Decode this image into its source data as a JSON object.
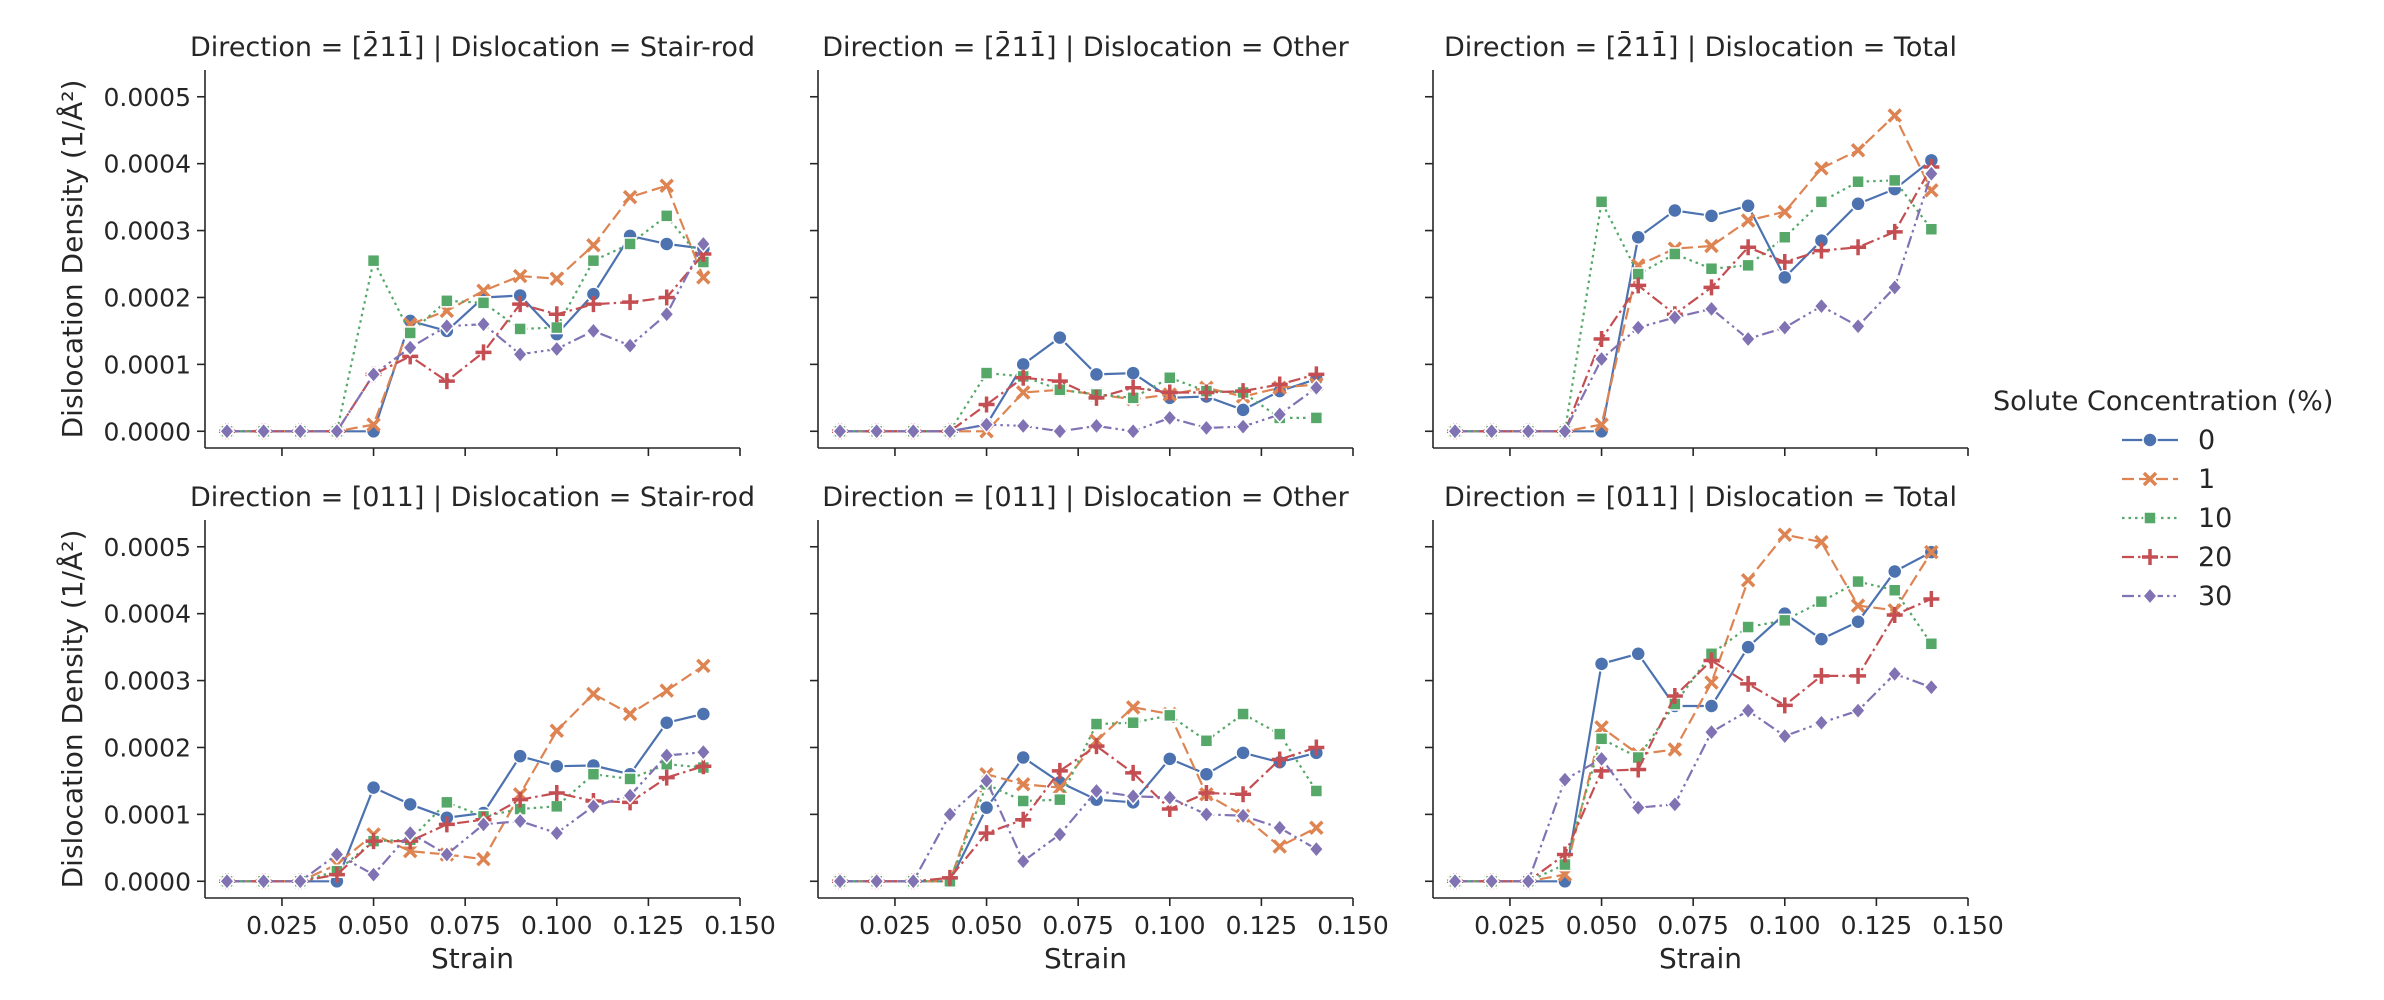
{
  "figure": {
    "legend": {
      "title": "Solute Concentration (%)",
      "placement": "right",
      "entries": [
        {
          "label": "0",
          "color": "#4c72b0",
          "marker": "circle",
          "dash": "solid"
        },
        {
          "label": "1",
          "color": "#dd8452",
          "marker": "x",
          "dash": "dashed"
        },
        {
          "label": "10",
          "color": "#55a868",
          "marker": "square",
          "dash": "dotted"
        },
        {
          "label": "20",
          "color": "#c44e52",
          "marker": "plus",
          "dash": "dashdot"
        },
        {
          "label": "30",
          "color": "#8172b3",
          "marker": "diamond",
          "dash": "dashdotdot"
        }
      ]
    },
    "shared_axes": {
      "xlabel": "Strain",
      "ylabel": "Dislocation Density (1/Å²)",
      "xlim": [
        0.004,
        0.15
      ],
      "ylim": [
        -2.5e-05,
        0.00054
      ],
      "xticks": [
        0.025,
        0.05,
        0.075,
        0.1,
        0.125,
        0.15
      ],
      "xtick_labels": [
        "0.025",
        "0.050",
        "0.075",
        "0.100",
        "0.125",
        "0.150"
      ],
      "yticks": [
        0,
        0.0001,
        0.0002,
        0.0003,
        0.0004,
        0.0005
      ],
      "ytick_labels": [
        "0.0000",
        "0.0001",
        "0.0002",
        "0.0003",
        "0.0004",
        "0.0005"
      ],
      "grid": false
    }
  },
  "chart_data": [
    {
      "type": "line",
      "title": "Direction = [2̄11̄] | Dislocation = Stair-rod",
      "x": [
        0.01,
        0.02,
        0.03,
        0.04,
        0.05,
        0.06,
        0.07,
        0.08,
        0.09,
        0.1,
        0.11,
        0.12,
        0.13,
        0.14
      ],
      "series": [
        {
          "name": "0",
          "values": [
            0,
            0,
            0,
            0,
            0,
            0.000165,
            0.00015,
            0.0002,
            0.000203,
            0.000145,
            0.000205,
            0.000292,
            0.00028,
            0.000273
          ]
        },
        {
          "name": "1",
          "values": [
            0,
            0,
            0,
            0,
            1e-05,
            0.00016,
            0.00018,
            0.00021,
            0.000232,
            0.000228,
            0.000278,
            0.00035,
            0.000367,
            0.00023
          ]
        },
        {
          "name": "10",
          "values": [
            0,
            0,
            0,
            0,
            0.000255,
            0.000147,
            0.000195,
            0.000192,
            0.000153,
            0.000155,
            0.000255,
            0.00028,
            0.000322,
            0.000253
          ]
        },
        {
          "name": "20",
          "values": [
            0,
            0,
            0,
            0,
            8.5e-05,
            0.000112,
            7.5e-05,
            0.000118,
            0.00019,
            0.000175,
            0.00019,
            0.000193,
            0.0002,
            0.000265
          ]
        },
        {
          "name": "30",
          "values": [
            0,
            0,
            0,
            0,
            8.5e-05,
            0.000125,
            0.000157,
            0.00016,
            0.000115,
            0.000123,
            0.00015,
            0.000128,
            0.000175,
            0.00028
          ]
        }
      ]
    },
    {
      "type": "line",
      "title": "Direction = [2̄11̄] | Dislocation = Other",
      "x": [
        0.01,
        0.02,
        0.03,
        0.04,
        0.05,
        0.06,
        0.07,
        0.08,
        0.09,
        0.1,
        0.11,
        0.12,
        0.13,
        0.14
      ],
      "series": [
        {
          "name": "0",
          "values": [
            0,
            0,
            0,
            0,
            1e-05,
            0.0001,
            0.00014,
            8.5e-05,
            8.7e-05,
            5e-05,
            5.2e-05,
            3.2e-05,
            6e-05,
            7.8e-05
          ]
        },
        {
          "name": "1",
          "values": [
            0,
            0,
            0,
            0,
            0,
            5.8e-05,
            6.2e-05,
            5.5e-05,
            4.8e-05,
            5.5e-05,
            6.5e-05,
            5.2e-05,
            6.5e-05,
            7e-05
          ]
        },
        {
          "name": "10",
          "values": [
            0,
            0,
            0,
            0,
            8.7e-05,
            8.2e-05,
            6.2e-05,
            5.5e-05,
            5e-05,
            8e-05,
            6e-05,
            5.8e-05,
            2e-05,
            2e-05
          ]
        },
        {
          "name": "20",
          "values": [
            0,
            0,
            0,
            0,
            4e-05,
            8e-05,
            7.5e-05,
            5e-05,
            6.5e-05,
            5.8e-05,
            5.8e-05,
            6e-05,
            7e-05,
            8.5e-05
          ]
        },
        {
          "name": "30",
          "values": [
            0,
            0,
            0,
            0,
            1e-05,
            8e-06,
            0,
            8e-06,
            0,
            2e-05,
            5e-06,
            7e-06,
            2.5e-05,
            6.5e-05
          ]
        }
      ]
    },
    {
      "type": "line",
      "title": "Direction = [2̄11̄] | Dislocation = Total",
      "x": [
        0.01,
        0.02,
        0.03,
        0.04,
        0.05,
        0.06,
        0.07,
        0.08,
        0.09,
        0.1,
        0.11,
        0.12,
        0.13,
        0.14
      ],
      "series": [
        {
          "name": "0",
          "values": [
            0,
            0,
            0,
            0,
            0,
            0.00029,
            0.00033,
            0.000322,
            0.000337,
            0.00023,
            0.000285,
            0.00034,
            0.000362,
            0.000405
          ]
        },
        {
          "name": "1",
          "values": [
            0,
            0,
            0,
            0,
            1e-05,
            0.000248,
            0.000273,
            0.000277,
            0.000315,
            0.000328,
            0.000393,
            0.00042,
            0.000472,
            0.00036
          ]
        },
        {
          "name": "10",
          "values": [
            0,
            0,
            0,
            0,
            0.000343,
            0.000235,
            0.000265,
            0.000243,
            0.000248,
            0.00029,
            0.000343,
            0.000373,
            0.000375,
            0.000302
          ]
        },
        {
          "name": "20",
          "values": [
            0,
            0,
            0,
            0,
            0.000138,
            0.000218,
            0.000175,
            0.000215,
            0.000275,
            0.000253,
            0.00027,
            0.000275,
            0.000298,
            0.000395
          ]
        },
        {
          "name": "30",
          "values": [
            0,
            0,
            0,
            0,
            0.000108,
            0.000155,
            0.00017,
            0.000183,
            0.000138,
            0.000155,
            0.000187,
            0.000157,
            0.000215,
            0.000385
          ]
        }
      ]
    },
    {
      "type": "line",
      "title": "Direction = [011] | Dislocation = Stair-rod",
      "x": [
        0.01,
        0.02,
        0.03,
        0.04,
        0.05,
        0.06,
        0.07,
        0.08,
        0.09,
        0.1,
        0.11,
        0.12,
        0.13,
        0.14
      ],
      "series": [
        {
          "name": "0",
          "values": [
            0,
            0,
            0,
            0,
            0.00014,
            0.000115,
            9.5e-05,
            0.000102,
            0.000187,
            0.000172,
            0.000173,
            0.00016,
            0.000237,
            0.00025
          ]
        },
        {
          "name": "1",
          "values": [
            0,
            0,
            0,
            2.5e-05,
            7e-05,
            4.5e-05,
            4e-05,
            3.3e-05,
            0.00013,
            0.000225,
            0.00028,
            0.00025,
            0.000285,
            0.000322
          ]
        },
        {
          "name": "10",
          "values": [
            0,
            0,
            0,
            1.5e-05,
            6e-05,
            6.2e-05,
            0.000118,
            9.7e-05,
            0.000108,
            0.000112,
            0.00016,
            0.000153,
            0.000175,
            0.00017
          ]
        },
        {
          "name": "20",
          "values": [
            0,
            0,
            0,
            1e-05,
            6e-05,
            6e-05,
            8.5e-05,
            9.2e-05,
            0.000122,
            0.000132,
            0.00012,
            0.000118,
            0.000155,
            0.000172
          ]
        },
        {
          "name": "30",
          "values": [
            0,
            0,
            0,
            4e-05,
            1e-05,
            7.2e-05,
            4e-05,
            8.5e-05,
            9e-05,
            7.2e-05,
            0.000112,
            0.000128,
            0.000188,
            0.000193
          ]
        }
      ]
    },
    {
      "type": "line",
      "title": "Direction = [011] | Dislocation = Other",
      "x": [
        0.01,
        0.02,
        0.03,
        0.04,
        0.05,
        0.06,
        0.07,
        0.08,
        0.09,
        0.1,
        0.11,
        0.12,
        0.13,
        0.14
      ],
      "series": [
        {
          "name": "0",
          "values": [
            0,
            0,
            0,
            0,
            0.00011,
            0.000185,
            0.000148,
            0.000122,
            0.000118,
            0.000183,
            0.00016,
            0.000192,
            0.000178,
            0.000192
          ]
        },
        {
          "name": "1",
          "values": [
            0,
            0,
            0,
            0,
            0.00016,
            0.000145,
            0.00014,
            0.00021,
            0.00026,
            0.00025,
            0.00013,
            9.8e-05,
            5.2e-05,
            8e-05
          ]
        },
        {
          "name": "10",
          "values": [
            0,
            0,
            0,
            0,
            0.000145,
            0.00012,
            0.000122,
            0.000235,
            0.000237,
            0.000248,
            0.00021,
            0.00025,
            0.00022,
            0.000135
          ]
        },
        {
          "name": "20",
          "values": [
            0,
            0,
            0,
            5e-06,
            7.2e-05,
            9.2e-05,
            0.000165,
            0.000202,
            0.000162,
            0.000108,
            0.000132,
            0.00013,
            0.000182,
            0.0002
          ]
        },
        {
          "name": "30",
          "values": [
            0,
            0,
            0,
            0.0001,
            0.00015,
            3e-05,
            7e-05,
            0.000135,
            0.000127,
            0.000125,
            0.0001,
            9.8e-05,
            8e-05,
            4.8e-05
          ]
        }
      ]
    },
    {
      "type": "line",
      "title": "Direction = [011] | Dislocation = Total",
      "x": [
        0.01,
        0.02,
        0.03,
        0.04,
        0.05,
        0.06,
        0.07,
        0.08,
        0.09,
        0.1,
        0.11,
        0.12,
        0.13,
        0.14
      ],
      "series": [
        {
          "name": "0",
          "values": [
            0,
            0,
            0,
            0,
            0.000325,
            0.00034,
            0.000262,
            0.000262,
            0.00035,
            0.0004,
            0.000362,
            0.000388,
            0.000463,
            0.000492
          ]
        },
        {
          "name": "1",
          "values": [
            0,
            0,
            0,
            1e-05,
            0.00023,
            0.00019,
            0.000197,
            0.000297,
            0.00045,
            0.000518,
            0.000507,
            0.000412,
            0.000405,
            0.000492
          ]
        },
        {
          "name": "10",
          "values": [
            0,
            0,
            0,
            2.5e-05,
            0.000213,
            0.000185,
            0.000265,
            0.00034,
            0.00038,
            0.00039,
            0.000418,
            0.000448,
            0.000435,
            0.000355
          ]
        },
        {
          "name": "20",
          "values": [
            0,
            0,
            0,
            4e-05,
            0.000165,
            0.000167,
            0.000277,
            0.00033,
            0.000295,
            0.000263,
            0.000307,
            0.000307,
            0.000398,
            0.000422
          ]
        },
        {
          "name": "30",
          "values": [
            0,
            0,
            0,
            0.000152,
            0.000183,
            0.00011,
            0.000115,
            0.000223,
            0.000255,
            0.000217,
            0.000237,
            0.000255,
            0.00031,
            0.00029
          ]
        }
      ]
    }
  ]
}
